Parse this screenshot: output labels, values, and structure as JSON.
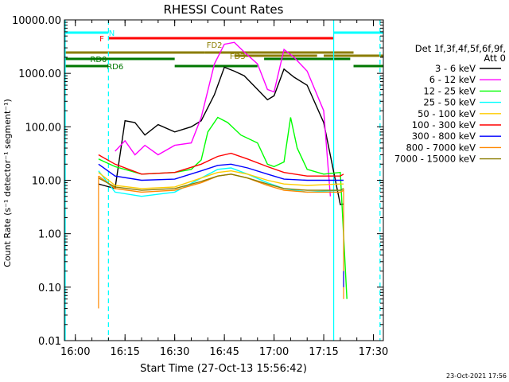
{
  "chart_data": {
    "type": "line",
    "title": "RHESSI Count Rates",
    "xlabel": "Start Time (27-Oct-13 15:56:42)",
    "ylabel": "Count Rate (s⁻¹ detector⁻¹ segment⁻¹)",
    "yscale": "log",
    "ylim": [
      0.01,
      10000
    ],
    "xlim": [
      "15:56:42",
      "17:33:00"
    ],
    "x_unit": "time of day (HH:MM)",
    "y_ticks": [
      "10000.00",
      "1000.00",
      "100.00",
      "10.00",
      "1.00",
      "0.10",
      "0.01"
    ],
    "x_ticks": [
      "16:00",
      "16:15",
      "16:30",
      "16:45",
      "17:00",
      "17:15",
      "17:30"
    ],
    "legend_header": [
      "Det 1f,3f,4f,5f,6f,9f,",
      "Att 0"
    ],
    "legend_position": "right",
    "series": [
      {
        "name": "3 - 6 keV",
        "color": "#000000",
        "x": [
          "16:07",
          "16:12",
          "16:15",
          "16:18",
          "16:21",
          "16:25",
          "16:30",
          "16:35",
          "16:38",
          "16:42",
          "16:45",
          "16:48",
          "16:51",
          "16:55",
          "16:58",
          "17:00",
          "17:03",
          "17:06",
          "17:10",
          "17:15",
          "17:20",
          "17:21"
        ],
        "values": [
          8.5,
          7.0,
          130,
          120,
          70,
          110,
          80,
          100,
          130,
          400,
          1300,
          1100,
          900,
          500,
          320,
          380,
          1200,
          850,
          600,
          120,
          3.5,
          3.6
        ]
      },
      {
        "name": "6 - 12 keV",
        "color": "#ff00ff",
        "x": [
          "16:12",
          "16:15",
          "16:18",
          "16:21",
          "16:25",
          "16:30",
          "16:35",
          "16:38",
          "16:42",
          "16:45",
          "16:48",
          "16:51",
          "16:55",
          "16:58",
          "17:00",
          "17:03",
          "17:06",
          "17:10",
          "17:15",
          "17:17"
        ],
        "values": [
          35,
          55,
          30,
          45,
          30,
          45,
          50,
          150,
          1500,
          3500,
          3800,
          2500,
          1500,
          500,
          450,
          2800,
          2000,
          1100,
          200,
          5.0
        ]
      },
      {
        "name": "12 - 25 keV",
        "color": "#00ff00",
        "x": [
          "16:07",
          "16:12",
          "16:20",
          "16:30",
          "16:35",
          "16:38",
          "16:40",
          "16:43",
          "16:46",
          "16:50",
          "16:55",
          "16:58",
          "17:00",
          "17:03",
          "17:05",
          "17:07",
          "17:10",
          "17:15",
          "17:20",
          "17:22"
        ],
        "values": [
          25,
          18,
          13,
          14,
          16,
          24,
          80,
          150,
          120,
          70,
          50,
          20,
          18,
          22,
          150,
          40,
          16,
          13,
          14,
          0.06
        ]
      },
      {
        "name": "25 - 50 keV",
        "color": "#00ffff",
        "x": [
          "16:07",
          "16:12",
          "16:20",
          "16:30",
          "16:38",
          "16:43",
          "16:47",
          "16:52",
          "16:58",
          "17:03",
          "17:10",
          "17:20",
          "17:21"
        ],
        "values": [
          15,
          6.0,
          5.0,
          6.0,
          11,
          16,
          17,
          13,
          9,
          7,
          6,
          6.5,
          7.0
        ]
      },
      {
        "name": "50 - 100 keV",
        "color": "#ffcc00",
        "x": [
          "16:07",
          "16:12",
          "16:20",
          "16:30",
          "16:38",
          "16:43",
          "16:47",
          "16:52",
          "16:58",
          "17:03",
          "17:10",
          "17:20",
          "17:21"
        ],
        "values": [
          14,
          8.0,
          7.0,
          7.5,
          11,
          14,
          15,
          13,
          10,
          8.5,
          8,
          8.5,
          8.5
        ]
      },
      {
        "name": "100 - 300 keV",
        "color": "#ff0000",
        "x": [
          "16:07",
          "16:12",
          "16:20",
          "16:30",
          "16:38",
          "16:43",
          "16:47",
          "16:52",
          "16:58",
          "17:03",
          "17:10",
          "17:20",
          "17:21"
        ],
        "values": [
          30,
          20,
          13,
          14,
          20,
          28,
          32,
          25,
          18,
          14,
          12,
          12,
          13
        ]
      },
      {
        "name": "300 - 800 keV",
        "color": "#0000ff",
        "x": [
          "16:07",
          "16:12",
          "16:20",
          "16:30",
          "16:38",
          "16:43",
          "16:47",
          "16:52",
          "16:58",
          "17:03",
          "17:10",
          "17:20",
          "17:21"
        ],
        "values": [
          20,
          12,
          10,
          10.5,
          15,
          19,
          20,
          17,
          13,
          10.5,
          10,
          10,
          10
        ]
      },
      {
        "name": "800 - 7000 keV",
        "color": "#ff8800",
        "x": [
          "16:07",
          "16:12",
          "16:20",
          "16:30",
          "16:38",
          "16:43",
          "16:47",
          "16:52",
          "16:58",
          "17:03",
          "17:10",
          "17:20",
          "17:21"
        ],
        "values": [
          12,
          7.0,
          6.0,
          6.5,
          9,
          12,
          13,
          11,
          8,
          6.5,
          6,
          6,
          6.5
        ]
      },
      {
        "name": "7000 - 15000 keV",
        "color": "#8b7d00",
        "x": [
          "16:07",
          "16:12",
          "16:20",
          "16:30",
          "16:38",
          "16:43",
          "16:47",
          "16:52",
          "16:58",
          "17:03",
          "17:10",
          "17:20",
          "17:21"
        ],
        "values": [
          11,
          7.5,
          6.5,
          7.0,
          9.5,
          12,
          13,
          11,
          8.5,
          7,
          6.5,
          6.5,
          7.0
        ]
      }
    ],
    "drop_lines": [
      {
        "color": "#ff8800",
        "x": "16:07",
        "y_from": 12,
        "y_to": 0.04
      },
      {
        "color": "#ff8800",
        "x": "17:21",
        "y_from": 7,
        "y_to": 0.06
      },
      {
        "color": "#0000ff",
        "x": "17:21",
        "y_from": 0.2,
        "y_to": 0.1
      }
    ],
    "vlines": [
      {
        "x": "16:10",
        "color": "#00ffff",
        "style": "dashed"
      },
      {
        "x": "17:18",
        "color": "#00ffff",
        "style": "solid"
      },
      {
        "x": "17:32",
        "color": "#00ffff",
        "style": "dashed"
      },
      {
        "x": "15:56",
        "color": "#00ffff",
        "style": "solid"
      }
    ],
    "annotation_bars": [
      {
        "label": "N",
        "color": "#00ffff",
        "segments": [
          [
            "15:56",
            "16:10"
          ],
          [
            "17:18",
            "17:33"
          ]
        ],
        "label_x": "16:11"
      },
      {
        "label": "F",
        "color": "#ff0000",
        "segments": [
          [
            "16:10",
            "17:18"
          ]
        ],
        "label_x": "16:08"
      },
      {
        "label": "FD2",
        "color": "#8b7d00",
        "segments": [
          [
            "15:56",
            "16:39"
          ],
          [
            "16:39",
            "17:24"
          ]
        ],
        "label_x": "16:42"
      },
      {
        "label": "FD3",
        "color": "#8b7d00",
        "segments": [
          [
            "16:48",
            "17:13"
          ],
          [
            "17:15",
            "17:33"
          ]
        ],
        "label_x": "16:49"
      },
      {
        "label": "RD0",
        "color": "#007700",
        "segments": [
          [
            "15:56",
            "16:30"
          ],
          [
            "16:57",
            "17:23"
          ]
        ],
        "label_x": "16:07"
      },
      {
        "label": "RD6",
        "color": "#007700",
        "segments": [
          [
            "15:56",
            "16:10"
          ],
          [
            "16:30",
            "16:55"
          ],
          [
            "17:24",
            "17:33"
          ]
        ],
        "label_x": "16:12"
      }
    ],
    "grid": false
  },
  "stamp": "23-Oct-2021 17:56"
}
